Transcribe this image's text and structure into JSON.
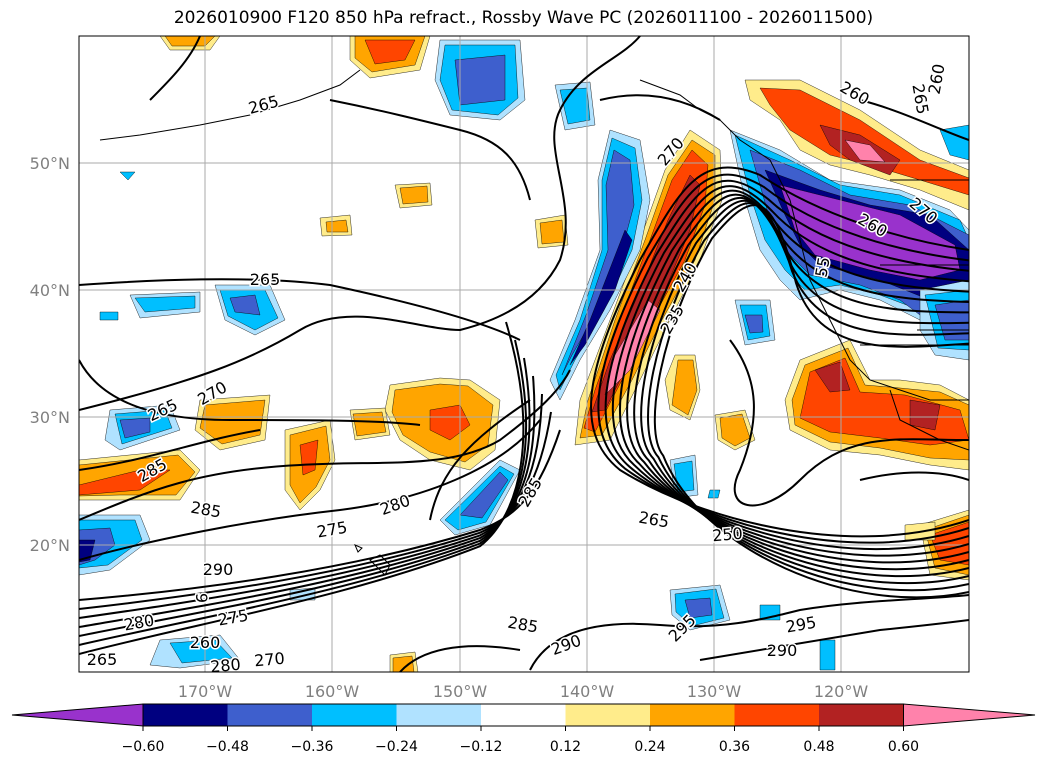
{
  "title": "2026010900 F120 850 hPa refract., Rossby Wave PC (2026011100 - 2026011500)",
  "map": {
    "lat_labels": [
      "50°N",
      "40°N",
      "30°N",
      "20°N"
    ],
    "lon_labels": [
      "170°W",
      "160°W",
      "150°W",
      "140°W",
      "130°W",
      "120°W"
    ],
    "contour_labels": [
      "265",
      "265",
      "270",
      "265",
      "285",
      "285",
      "275",
      "280",
      "290",
      "9",
      "275",
      "280",
      "260",
      "270",
      "265",
      "280",
      "285",
      "285",
      "290",
      "295",
      "295",
      "290",
      "250",
      "265",
      "235",
      "240",
      "270",
      "260",
      "265",
      "260",
      "260",
      "55",
      "270"
    ]
  },
  "colorbar": {
    "colors": [
      "#9932CC",
      "#000080",
      "#3E5FCD",
      "#00BFFF",
      "#B0E2FF",
      "#FFFFFF",
      "#FFEC8B",
      "#FFA500",
      "#FF4500",
      "#B22222",
      "#FF82AB"
    ],
    "tick_labels": [
      "−0.60",
      "−0.48",
      "−0.36",
      "−0.24",
      "−0.12",
      "0.12",
      "0.24",
      "0.36",
      "0.48",
      "0.60"
    ]
  }
}
